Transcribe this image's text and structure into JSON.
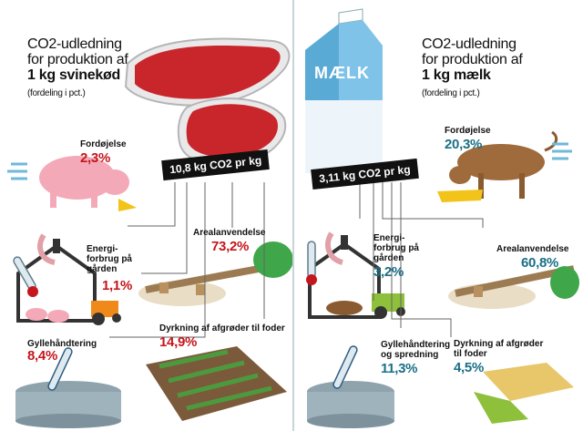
{
  "left": {
    "title_line1": "CO2-udledning",
    "title_line2": "for produktion af",
    "title_line3": "1 kg svinekød",
    "subtitle": "(fordeling i pct.)",
    "total": "10,8 kg CO2 pr kg",
    "items": [
      {
        "label": "Fordøjelse",
        "value": "2,3%"
      },
      {
        "label": "Energi-\nforbrug på\ngården",
        "value": "1,1%"
      },
      {
        "label": "Gyllehåndtering",
        "value": "8,4%"
      },
      {
        "label": "Arealanvendelse",
        "value": "73,2%"
      },
      {
        "label": "Dyrkning af afgrøder til foder",
        "value": "14,9%"
      }
    ]
  },
  "right": {
    "title_line1": "CO2-udledning",
    "title_line2": "for produktion af",
    "title_line3": "1 kg mælk",
    "subtitle": "(fordeling i pct.)",
    "total": "3,11 kg CO2 pr kg",
    "carton_text": "MÆLK",
    "items": [
      {
        "label": "Fordøjelse",
        "value": "20,3%"
      },
      {
        "label": "Energi-\nforbrug på\ngården",
        "value": "3,2%"
      },
      {
        "label": "Arealanvendelse",
        "value": "60,8%"
      },
      {
        "label": "Gyllehåndtering\nog spredning",
        "value": "11,3%"
      },
      {
        "label": "Dyrkning af afgrøder\ntil foder",
        "value": "4,5%"
      }
    ]
  },
  "colors": {
    "pork_accent": "#c4161c",
    "milk_accent": "#1a6f86"
  },
  "icons": [
    "steak-icon",
    "pig-icon",
    "barn-icon",
    "thermometer-icon",
    "tractor-icon",
    "manure-tank-icon",
    "deforestation-icon",
    "crop-field-icon",
    "milk-carton-icon",
    "cow-icon",
    "fodder-icon"
  ]
}
